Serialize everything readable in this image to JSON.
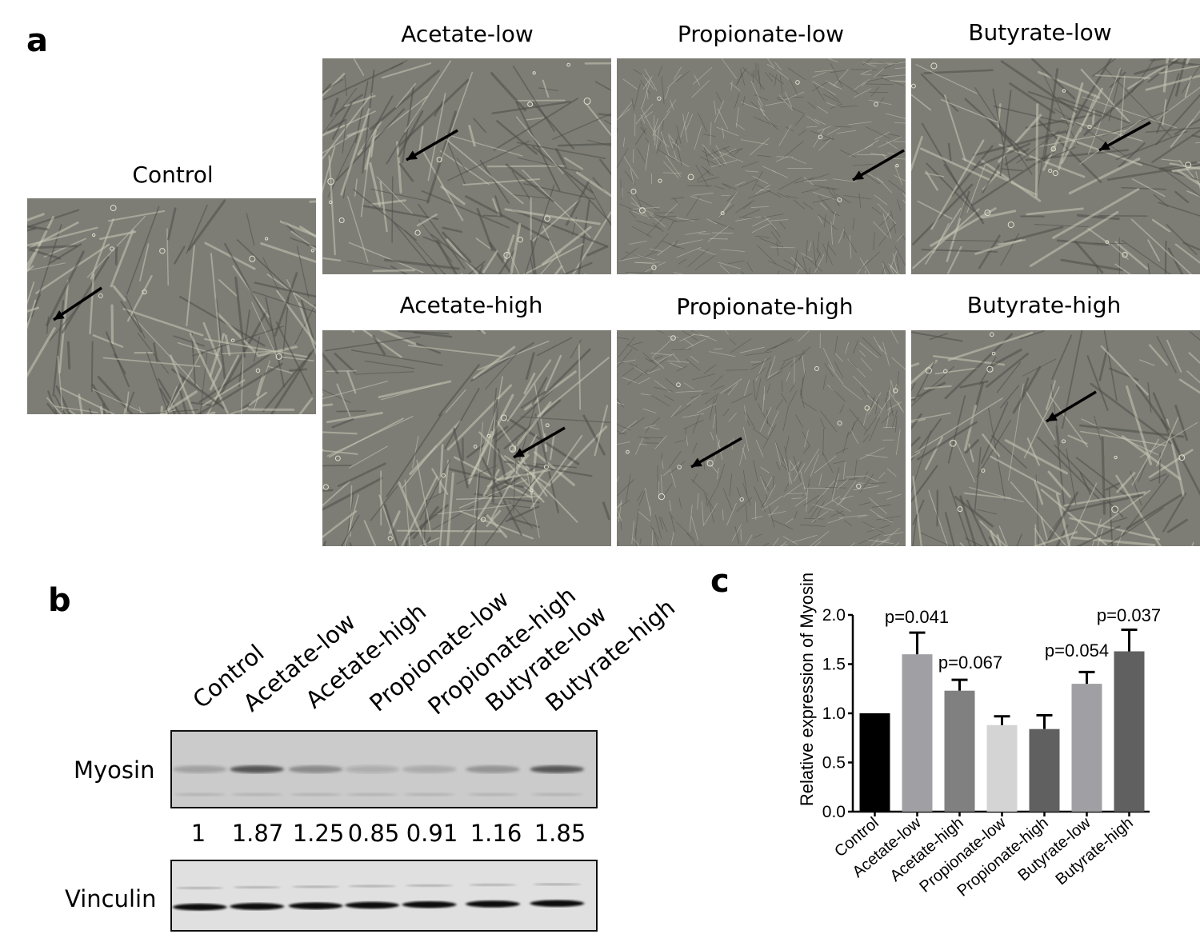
{
  "panel_a": {
    "letter": "a",
    "panels": [
      {
        "label": "Control"
      },
      {
        "label": "Acetate-low"
      },
      {
        "label": "Propionate-low"
      },
      {
        "label": "Butyrate-low"
      },
      {
        "label": "Acetate-high"
      },
      {
        "label": "Propionate-high"
      },
      {
        "label": "Butyrate-high"
      }
    ]
  },
  "panel_b": {
    "letter": "b",
    "lanes": [
      "Control",
      "Acetate-low",
      "Acetate-high",
      "Propionate-low",
      "Propionate-high",
      "Butyrate-low",
      "Butyrate-high"
    ],
    "blots": [
      {
        "name": "Myosin"
      },
      {
        "name": "Vinculin"
      }
    ],
    "ratios": [
      "1",
      "1.87",
      "1.25",
      "0.85",
      "0.91",
      "1.16",
      "1.85"
    ]
  },
  "panel_c": {
    "letter": "c",
    "chart_data": {
      "type": "bar",
      "categories": [
        "Control",
        "Acetate-low",
        "Acetate-high",
        "Propionate-low",
        "Propionate-high",
        "Butyrate-low",
        "Butyrate-high"
      ],
      "values": [
        1.0,
        1.6,
        1.23,
        0.88,
        0.84,
        1.3,
        1.63
      ],
      "error_upper": [
        0,
        0.22,
        0.11,
        0.09,
        0.14,
        0.12,
        0.22
      ],
      "annotations": [
        "",
        "p=0.041",
        "p=0.067",
        "",
        "",
        "p=0.054",
        "p=0.037"
      ],
      "colors": [
        "#000000",
        "#a0a0a4",
        "#808080",
        "#d4d4d4",
        "#606060",
        "#a0a0a4",
        "#606060"
      ],
      "ylabel": "Relative expression of Myosin",
      "xlabel": "",
      "ylim": [
        0,
        2.0
      ],
      "yticks": [
        "0.0",
        "0.5",
        "1.0",
        "1.5",
        "2.0"
      ],
      "grid": false
    }
  }
}
